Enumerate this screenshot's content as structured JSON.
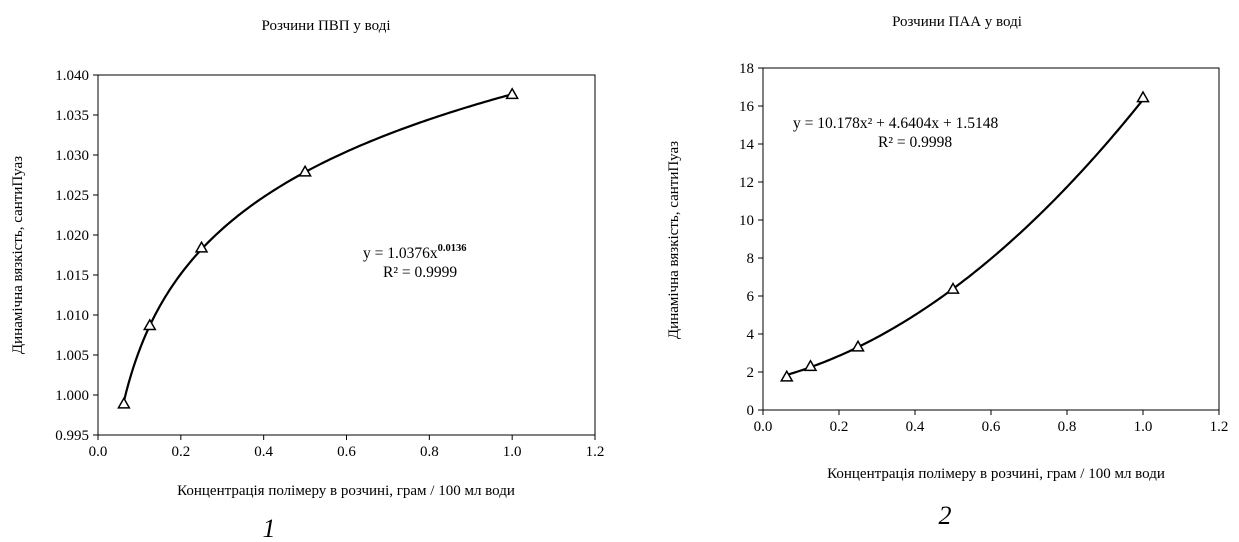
{
  "chart_data": [
    {
      "type": "scatter",
      "title": "Розчини ПВП у воді",
      "xlabel": "Концентрація полімеру в розчині, грам / 100 мл води",
      "ylabel": "Динамічна вязкість, сантиПуаз",
      "xlim": [
        0.0,
        1.2
      ],
      "ylim": [
        0.995,
        1.04
      ],
      "x_ticks": [
        "0.0",
        "0.2",
        "0.4",
        "0.6",
        "0.8",
        "1.0",
        "1.2"
      ],
      "y_ticks": [
        "0.995",
        "1.000",
        "1.005",
        "1.010",
        "1.015",
        "1.020",
        "1.025",
        "1.030",
        "1.035",
        "1.040"
      ],
      "grid": false,
      "marker": "triangle-open",
      "points": [
        {
          "x": 0.0625,
          "y": 0.9989
        },
        {
          "x": 0.125,
          "y": 1.0087
        },
        {
          "x": 0.25,
          "y": 1.0184
        },
        {
          "x": 0.5,
          "y": 1.0279
        },
        {
          "x": 1.0,
          "y": 1.0376
        }
      ],
      "trendline": {
        "kind": "power",
        "a": 1.0376,
        "b": 0.0136
      },
      "equation_main": "y = 1.0376x",
      "equation_exp": "0.0136",
      "r2_label": "R² = 0.9999",
      "panel_label": "1"
    },
    {
      "type": "scatter",
      "title": "Розчини ПАА у воді",
      "xlabel": "Концентрація полімеру в розчині, грам / 100 мл води",
      "ylabel": "Динамічна вязкість, сантиПуаз",
      "xlim": [
        0.0,
        1.2
      ],
      "ylim": [
        0,
        18
      ],
      "x_ticks": [
        "0.0",
        "0.2",
        "0.4",
        "0.6",
        "0.8",
        "1.0",
        "1.2"
      ],
      "y_ticks": [
        "0",
        "2",
        "4",
        "6",
        "8",
        "10",
        "12",
        "14",
        "16",
        "18"
      ],
      "grid": false,
      "marker": "triangle-open",
      "points": [
        {
          "x": 0.0625,
          "y": 1.75
        },
        {
          "x": 0.125,
          "y": 2.3
        },
        {
          "x": 0.25,
          "y": 3.33
        },
        {
          "x": 0.5,
          "y": 6.37
        },
        {
          "x": 1.0,
          "y": 16.45
        }
      ],
      "trendline": {
        "kind": "polynomial",
        "coeffs": [
          10.178,
          4.6404,
          1.5148
        ]
      },
      "equation_main": "y = 10.178x² + 4.6404x + 1.5148",
      "equation_exp": "",
      "r2_label": "R² = 0.9998",
      "panel_label": "2"
    }
  ]
}
